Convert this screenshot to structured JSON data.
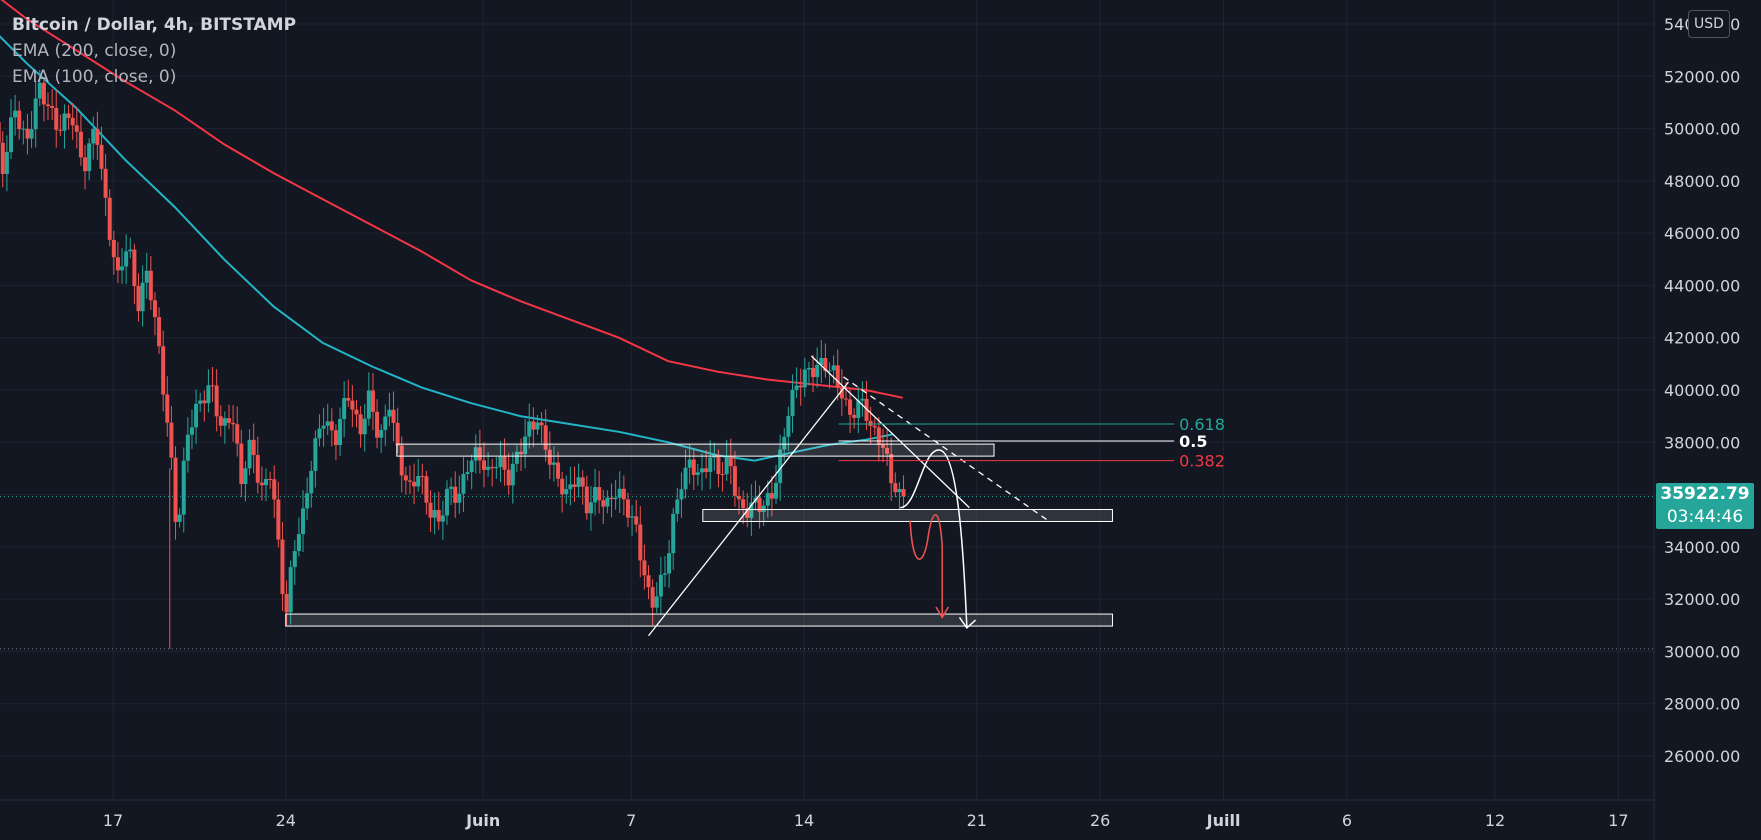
{
  "chart_data": {
    "type": "candlestick",
    "symbol_title": "Bitcoin / Dollar, 4h, BITSTAMP",
    "indicators": [
      {
        "label": "EMA (200, close, 0)",
        "color": "#f23645"
      },
      {
        "label": "EMA (100, close, 0)",
        "color": "#22b5c7"
      }
    ],
    "currency_button": "USD",
    "ylim": [
      24000,
      56000
    ],
    "y_ticks": [
      {
        "value": 54000,
        "label": "54000.00"
      },
      {
        "value": 52000,
        "label": "52000.00"
      },
      {
        "value": 50000,
        "label": "50000.00"
      },
      {
        "value": 48000,
        "label": "48000.00"
      },
      {
        "value": 46000,
        "label": "46000.00"
      },
      {
        "value": 44000,
        "label": "44000.00"
      },
      {
        "value": 42000,
        "label": "42000.00"
      },
      {
        "value": 40000,
        "label": "40000.00"
      },
      {
        "value": 38000,
        "label": "38000.00"
      },
      {
        "value": 36000,
        "label": "36000.00"
      },
      {
        "value": 34000,
        "label": "34000.00"
      },
      {
        "value": 32000,
        "label": "32000.00"
      },
      {
        "value": 30000,
        "label": "30000.00"
      },
      {
        "value": 28000,
        "label": "28000.00"
      },
      {
        "value": 26000,
        "label": "26000.00"
      }
    ],
    "x_range_days": [
      11.7,
      56.1
    ],
    "x_ticks": [
      {
        "day": 17,
        "label": "17"
      },
      {
        "day": 24,
        "label": "24"
      },
      {
        "day": 32,
        "label": "Juin"
      },
      {
        "day": 38,
        "label": "7"
      },
      {
        "day": 45,
        "label": "14"
      },
      {
        "day": 52,
        "label": "21"
      },
      {
        "day": 57,
        "label": "26"
      },
      {
        "day": 62,
        "label": "Juill"
      },
      {
        "day": 67,
        "label": "6"
      },
      {
        "day": 73,
        "label": "12"
      },
      {
        "day": 78,
        "label": "17"
      }
    ],
    "last_price": {
      "value": 35922.79,
      "label": "35922.79",
      "countdown": "03:44:46"
    },
    "price_path": [
      [
        11.7,
        55000
      ],
      [
        12.0,
        51500
      ],
      [
        12.5,
        48000
      ],
      [
        13.0,
        50500
      ],
      [
        13.5,
        49000
      ],
      [
        14.0,
        51200
      ],
      [
        14.8,
        49500
      ],
      [
        15.3,
        50200
      ],
      [
        15.8,
        48000
      ],
      [
        16.3,
        49800
      ],
      [
        16.8,
        46000
      ],
      [
        17.2,
        44000
      ],
      [
        17.6,
        45500
      ],
      [
        18.0,
        43000
      ],
      [
        18.4,
        44500
      ],
      [
        18.8,
        42000
      ],
      [
        19.3,
        38000
      ],
      [
        19.6,
        34500
      ],
      [
        20.0,
        38500
      ],
      [
        20.5,
        39800
      ],
      [
        21.0,
        40500
      ],
      [
        21.4,
        38800
      ],
      [
        21.8,
        39600
      ],
      [
        22.2,
        37000
      ],
      [
        22.6,
        38500
      ],
      [
        23.0,
        36500
      ],
      [
        23.4,
        37400
      ],
      [
        23.7,
        34500
      ],
      [
        24.0,
        31600
      ],
      [
        24.3,
        34200
      ],
      [
        24.7,
        35500
      ],
      [
        25.1,
        37800
      ],
      [
        25.5,
        39200
      ],
      [
        26.0,
        38200
      ],
      [
        26.5,
        40000
      ],
      [
        27.0,
        38300
      ],
      [
        27.4,
        39700
      ],
      [
        27.8,
        37800
      ],
      [
        28.2,
        39300
      ],
      [
        28.6,
        37000
      ],
      [
        29.0,
        35800
      ],
      [
        29.4,
        36500
      ],
      [
        29.8,
        35000
      ],
      [
        30.2,
        34500
      ],
      [
        30.6,
        35800
      ],
      [
        31.0,
        35400
      ],
      [
        31.4,
        36800
      ],
      [
        31.8,
        37200
      ],
      [
        32.2,
        36400
      ],
      [
        32.6,
        37100
      ],
      [
        33.0,
        36300
      ],
      [
        33.4,
        37300
      ],
      [
        33.8,
        38300
      ],
      [
        34.2,
        38800
      ],
      [
        34.6,
        37600
      ],
      [
        35.0,
        36700
      ],
      [
        35.4,
        36100
      ],
      [
        35.8,
        37000
      ],
      [
        36.2,
        35800
      ],
      [
        36.6,
        36400
      ],
      [
        37.0,
        35900
      ],
      [
        37.4,
        36600
      ],
      [
        37.8,
        36000
      ],
      [
        38.2,
        35100
      ],
      [
        38.5,
        33500
      ],
      [
        38.8,
        32200
      ],
      [
        39.1,
        32800
      ],
      [
        39.4,
        33600
      ],
      [
        39.7,
        35400
      ],
      [
        40.0,
        36800
      ],
      [
        40.4,
        37600
      ],
      [
        40.8,
        36900
      ],
      [
        41.2,
        37700
      ],
      [
        41.6,
        37000
      ],
      [
        42.0,
        37400
      ],
      [
        42.3,
        35700
      ],
      [
        42.6,
        35300
      ],
      [
        43.0,
        35600
      ],
      [
        43.4,
        35400
      ],
      [
        43.8,
        36000
      ],
      [
        44.1,
        37500
      ],
      [
        44.4,
        39100
      ],
      [
        44.7,
        39800
      ],
      [
        45.0,
        40200
      ],
      [
        45.4,
        40400
      ],
      [
        45.8,
        40600
      ],
      [
        46.2,
        40200
      ],
      [
        46.5,
        39500
      ],
      [
        46.8,
        38600
      ],
      [
        47.1,
        38800
      ],
      [
        47.4,
        39200
      ],
      [
        47.7,
        38100
      ],
      [
        48.0,
        37900
      ],
      [
        48.3,
        37200
      ],
      [
        48.6,
        36100
      ],
      [
        48.9,
        35600
      ],
      [
        49.1,
        35900
      ]
    ],
    "ema200": [
      [
        11.7,
        55500
      ],
      [
        13.5,
        54200
      ],
      [
        15.5,
        53000
      ],
      [
        17.5,
        51800
      ],
      [
        19.5,
        50700
      ],
      [
        21.5,
        49400
      ],
      [
        23.5,
        48300
      ],
      [
        25.5,
        47300
      ],
      [
        27.5,
        46300
      ],
      [
        29.5,
        45300
      ],
      [
        31.5,
        44200
      ],
      [
        33.5,
        43400
      ],
      [
        35.5,
        42700
      ],
      [
        37.5,
        42000
      ],
      [
        39.5,
        41100
      ],
      [
        41.5,
        40700
      ],
      [
        43.5,
        40400
      ],
      [
        45.5,
        40200
      ],
      [
        47.5,
        40000
      ],
      [
        49.0,
        39700
      ]
    ],
    "ema100": [
      [
        11.7,
        54200
      ],
      [
        13.5,
        52500
      ],
      [
        15.5,
        50800
      ],
      [
        17.5,
        48800
      ],
      [
        19.5,
        47000
      ],
      [
        21.5,
        45000
      ],
      [
        23.5,
        43200
      ],
      [
        25.5,
        41800
      ],
      [
        27.5,
        40900
      ],
      [
        29.5,
        40100
      ],
      [
        31.5,
        39500
      ],
      [
        33.5,
        39000
      ],
      [
        35.5,
        38700
      ],
      [
        37.5,
        38400
      ],
      [
        39.5,
        38000
      ],
      [
        41.5,
        37500
      ],
      [
        43.0,
        37300
      ],
      [
        44.5,
        37600
      ],
      [
        46.0,
        37900
      ],
      [
        47.5,
        38100
      ],
      [
        48.6,
        38300
      ]
    ],
    "fibonacci": {
      "color_618": "#26a69a",
      "color_05": "#ffffff",
      "color_382": "#f23645",
      "levels": [
        {
          "label": "0.618",
          "value": 38700,
          "color": "#26a69a"
        },
        {
          "label": "0.5",
          "value": 38050,
          "color": "#ffffff"
        },
        {
          "label": "0.382",
          "value": 37300,
          "color": "#f23645"
        }
      ]
    },
    "zones": [
      {
        "y": 37700,
        "x": [
          28.5,
          52.7
        ]
      },
      {
        "y": 35200,
        "x": [
          40.9,
          57.5
        ]
      },
      {
        "y": 31200,
        "x": [
          24.0,
          57.5
        ]
      }
    ],
    "dotted_levels": [
      35922.79,
      30100
    ]
  }
}
